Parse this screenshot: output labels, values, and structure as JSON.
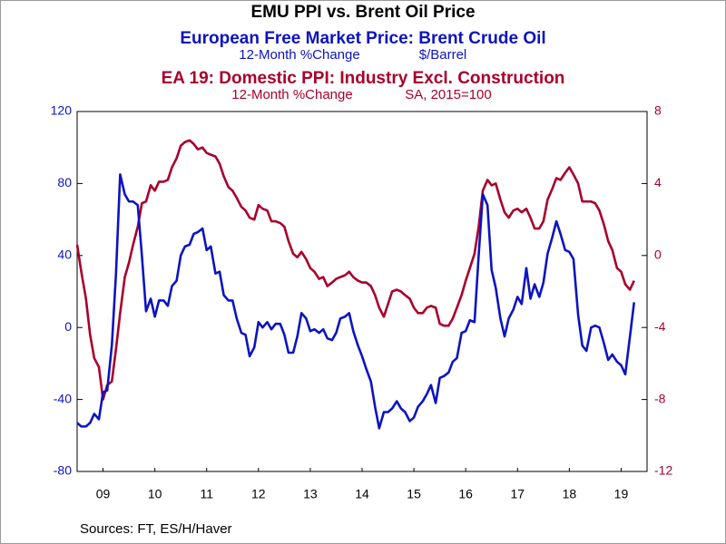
{
  "chart_data": {
    "type": "line",
    "title": "EMU PPI vs. Brent Oil Price",
    "source": "Sources:  FT, ES/H/Haver",
    "x": [
      2009.0,
      2009.08,
      2009.17,
      2009.25,
      2009.33,
      2009.42,
      2009.5,
      2009.58,
      2009.67,
      2009.75,
      2009.83,
      2009.92,
      2010.0,
      2010.08,
      2010.17,
      2010.25,
      2010.33,
      2010.42,
      2010.5,
      2010.58,
      2010.67,
      2010.75,
      2010.83,
      2010.92,
      2011.0,
      2011.08,
      2011.17,
      2011.25,
      2011.33,
      2011.42,
      2011.5,
      2011.58,
      2011.67,
      2011.75,
      2011.83,
      2011.92,
      2012.0,
      2012.08,
      2012.17,
      2012.25,
      2012.33,
      2012.42,
      2012.5,
      2012.58,
      2012.67,
      2012.75,
      2012.83,
      2012.92,
      2013.0,
      2013.08,
      2013.17,
      2013.25,
      2013.33,
      2013.42,
      2013.5,
      2013.58,
      2013.67,
      2013.75,
      2013.83,
      2013.92,
      2014.0,
      2014.08,
      2014.17,
      2014.25,
      2014.33,
      2014.42,
      2014.5,
      2014.58,
      2014.67,
      2014.75,
      2014.83,
      2014.92,
      2015.0,
      2015.08,
      2015.17,
      2015.25,
      2015.33,
      2015.42,
      2015.5,
      2015.58,
      2015.67,
      2015.75,
      2015.83,
      2015.92,
      2016.0,
      2016.08,
      2016.17,
      2016.25,
      2016.33,
      2016.42,
      2016.5,
      2016.58,
      2016.67,
      2016.75,
      2016.83,
      2016.92,
      2017.0,
      2017.08,
      2017.17,
      2017.25,
      2017.33,
      2017.42,
      2017.5,
      2017.58,
      2017.67,
      2017.75,
      2017.83,
      2017.92,
      2018.0,
      2018.08,
      2018.17,
      2018.25,
      2018.33,
      2018.42,
      2018.5,
      2018.58,
      2018.67,
      2018.75,
      2018.83,
      2018.92,
      2019.0,
      2019.08,
      2019.17,
      2019.25,
      2019.33,
      2019.42,
      2019.5,
      2019.58,
      2019.67,
      2019.75
    ],
    "xlim": [
      2009,
      2020
    ],
    "xticks": [
      {
        "value": 2009.5,
        "label": "09"
      },
      {
        "value": 2010.5,
        "label": "10"
      },
      {
        "value": 2011.5,
        "label": "11"
      },
      {
        "value": 2012.5,
        "label": "12"
      },
      {
        "value": 2013.5,
        "label": "13"
      },
      {
        "value": 2014.5,
        "label": "14"
      },
      {
        "value": 2015.5,
        "label": "15"
      },
      {
        "value": 2016.5,
        "label": "16"
      },
      {
        "value": 2017.5,
        "label": "17"
      },
      {
        "value": 2018.5,
        "label": "18"
      },
      {
        "value": 2019.5,
        "label": "19"
      }
    ],
    "ylim": [
      -80,
      120
    ],
    "yticks": [
      -80,
      -40,
      0,
      40,
      80,
      120
    ],
    "y2lim": [
      -12,
      8
    ],
    "y2ticks": [
      -12,
      -8,
      -4,
      0,
      4,
      8
    ],
    "series": [
      {
        "name": "European Free Market Price: Brent Crude Oil",
        "units": [
          "12-Month %Change",
          "$/Barrel"
        ],
        "color": "#0c14c0",
        "axis": "y",
        "values": [
          -53,
          -55,
          -55,
          -53,
          -48,
          -51,
          -36,
          -35,
          -10,
          30,
          85,
          74,
          70,
          70,
          68,
          40,
          9,
          16,
          6,
          15,
          15,
          12,
          23,
          26,
          40,
          45,
          46,
          52,
          53,
          55,
          43,
          45,
          30,
          31,
          18,
          15,
          15,
          5,
          -3,
          -4,
          -16,
          -11,
          3,
          0,
          3,
          -1,
          2,
          2,
          -4,
          -14,
          -14,
          -5,
          8,
          5,
          -2,
          -1,
          -3,
          -1,
          -6,
          -7,
          -3,
          5,
          6,
          8,
          -2,
          -10,
          -16,
          -23,
          -30,
          -44,
          -56,
          -47,
          -47,
          -45,
          -41,
          -45,
          -47,
          -52,
          -50,
          -44,
          -41,
          -37,
          -32,
          -42,
          -28,
          -27,
          -25,
          -19,
          -17,
          -3,
          -2,
          4,
          3,
          40,
          74,
          68,
          32,
          22,
          5,
          -5,
          5,
          10,
          17,
          13,
          33,
          16,
          24,
          17,
          25,
          41,
          50,
          59,
          52,
          43,
          42,
          38,
          7,
          -10,
          -13,
          0,
          1,
          0,
          -9,
          -18,
          -15,
          -19,
          -21,
          -26,
          -5,
          14
        ]
      },
      {
        "name": "EA 19: Domestic PPI: Industry Excl. Construction",
        "units": [
          "12-Month %Change",
          "SA, 2015=100"
        ],
        "color": "#a8002c",
        "axis": "y2",
        "values": [
          0.6,
          -0.9,
          -2.4,
          -4.4,
          -5.7,
          -6.2,
          -8.0,
          -7.2,
          -7.0,
          -5.2,
          -3.2,
          -1.2,
          -0.4,
          0.6,
          1.6,
          2.9,
          3.0,
          3.9,
          3.6,
          4.1,
          4.1,
          4.2,
          4.9,
          5.4,
          6.1,
          6.3,
          6.4,
          6.2,
          5.9,
          6.0,
          5.7,
          5.6,
          5.5,
          5.1,
          4.4,
          3.8,
          3.6,
          3.2,
          2.7,
          2.5,
          2.1,
          2.0,
          2.8,
          2.6,
          2.5,
          1.9,
          1.9,
          1.8,
          1.6,
          0.8,
          0.1,
          -0.1,
          0.2,
          -0.2,
          -0.7,
          -0.9,
          -1.3,
          -1.2,
          -1.7,
          -1.5,
          -1.3,
          -1.2,
          -1.1,
          -0.9,
          -1.2,
          -1.4,
          -1.5,
          -1.5,
          -1.7,
          -2.2,
          -2.9,
          -3.4,
          -2.7,
          -2.0,
          -1.9,
          -2.0,
          -2.2,
          -2.4,
          -2.9,
          -3.2,
          -3.2,
          -2.9,
          -2.8,
          -2.9,
          -3.8,
          -3.9,
          -3.9,
          -3.5,
          -2.9,
          -2.2,
          -1.4,
          -0.7,
          0.1,
          1.6,
          3.6,
          4.2,
          3.9,
          4.0,
          3.1,
          2.4,
          2.1,
          2.5,
          2.6,
          2.4,
          2.6,
          2.1,
          1.5,
          1.5,
          1.9,
          3.1,
          3.7,
          4.3,
          4.2,
          4.6,
          4.9,
          4.5,
          4.0,
          3.0,
          3.0,
          3.0,
          2.9,
          2.5,
          1.7,
          0.8,
          0.3,
          -0.7,
          -0.9,
          -1.6,
          -1.9,
          -1.4
        ]
      }
    ]
  }
}
